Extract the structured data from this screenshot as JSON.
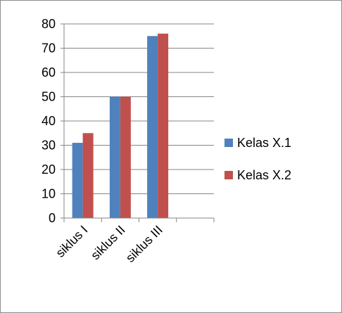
{
  "chart_data": {
    "type": "bar",
    "categories": [
      "siklus I",
      "siklus II",
      "siklus III",
      ""
    ],
    "series": [
      {
        "name": "Kelas X.1",
        "color": "#4f81bd",
        "values": [
          31,
          50,
          75,
          null
        ]
      },
      {
        "name": "Kelas X.2",
        "color": "#c0504d",
        "values": [
          35,
          50,
          76,
          null
        ]
      }
    ],
    "ylim": [
      0,
      80
    ],
    "yticks": [
      0,
      10,
      20,
      30,
      40,
      50,
      60,
      70,
      80
    ],
    "title": "",
    "xlabel": "",
    "ylabel": "",
    "grid": true,
    "legend_position": "right"
  }
}
